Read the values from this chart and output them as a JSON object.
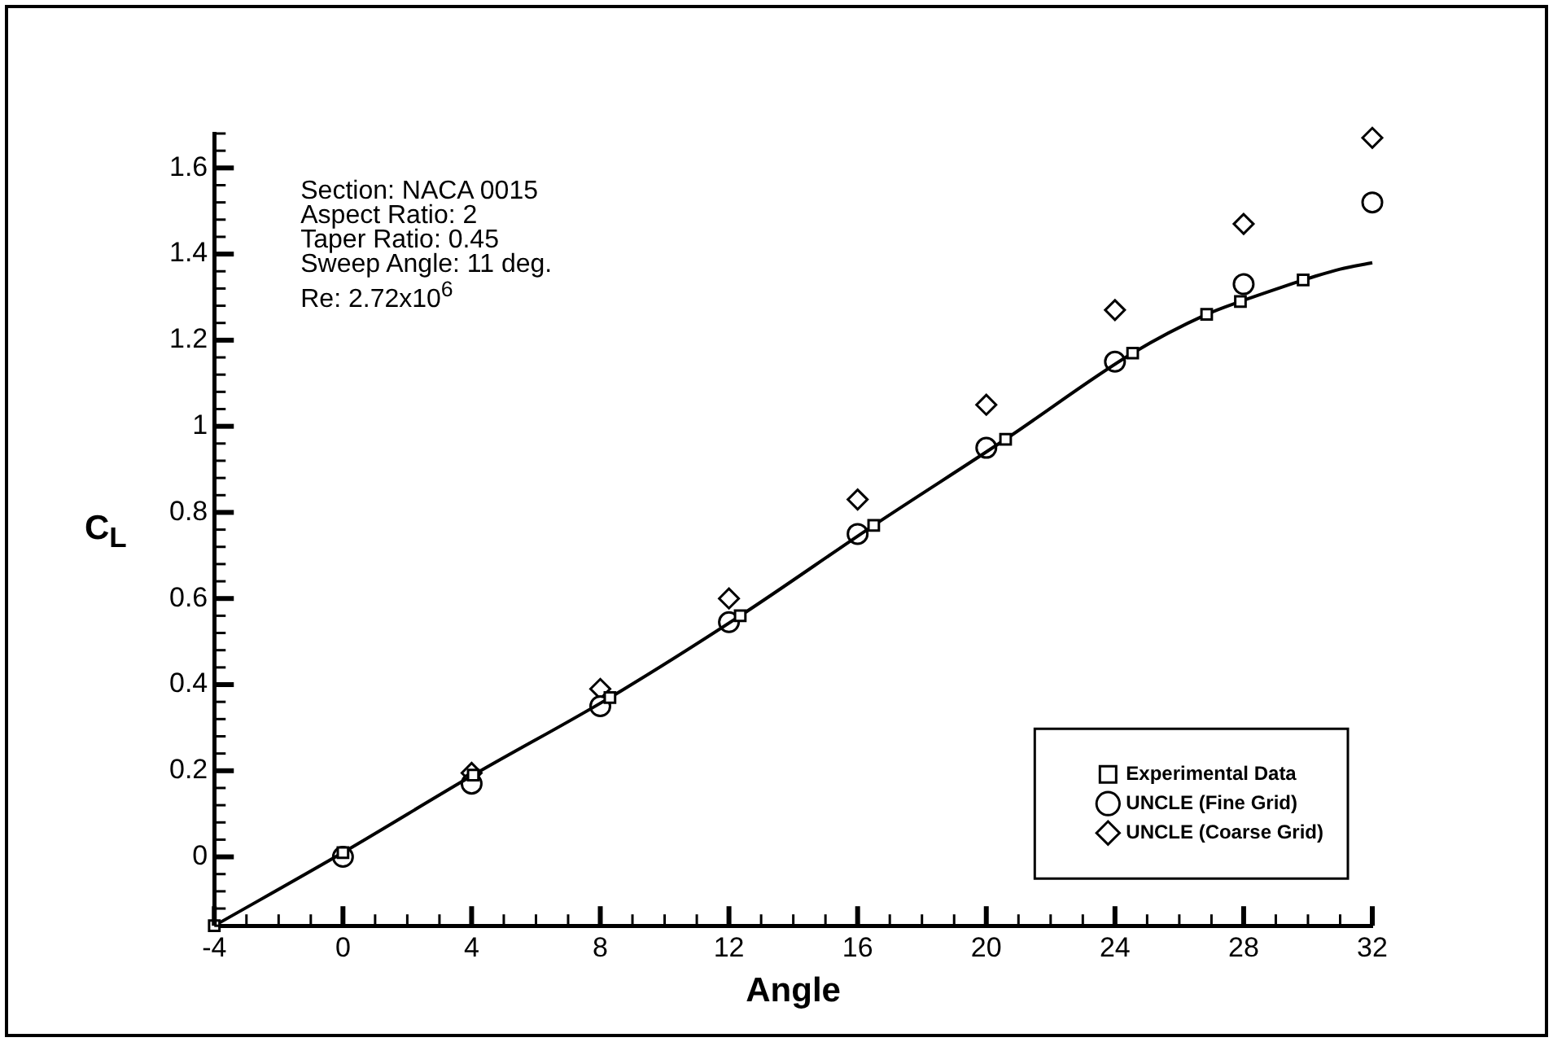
{
  "chart_data": {
    "type": "line",
    "xlabel": "Angle",
    "ylabel": "C$_{L}$",
    "legend": "bottom right",
    "annotations": [
      "Section: NACA 0015",
      "Aspect Ratio: 2",
      "Taper Ratio: 0.45",
      "Sweep Angle: 11 deg.",
      "Re: 2.72x10$^{6}$"
    ],
    "xlim": [
      -4,
      32
    ],
    "ylim": [
      -0.16,
      1.68
    ],
    "xticks": [
      -4,
      {
        "value": -3,
        "label": null
      },
      {
        "value": -2,
        "label": null
      },
      {
        "value": -1,
        "label": null
      },
      0,
      {
        "value": 1,
        "label": null
      },
      {
        "value": 2,
        "label": null
      },
      {
        "value": 3,
        "label": null
      },
      4,
      {
        "value": 5,
        "label": null
      },
      {
        "value": 6,
        "label": null
      },
      {
        "value": 7,
        "label": null
      },
      8,
      {
        "value": 9,
        "label": null
      },
      {
        "value": 10,
        "label": null
      },
      {
        "value": 11,
        "label": null
      },
      12,
      {
        "value": 13,
        "label": null
      },
      {
        "value": 14,
        "label": null
      },
      {
        "value": 15,
        "label": null
      },
      16,
      {
        "value": 17,
        "label": null
      },
      {
        "value": 18,
        "label": null
      },
      {
        "value": 19,
        "label": null
      },
      20,
      {
        "value": 21,
        "label": null
      },
      {
        "value": 22,
        "label": null
      },
      {
        "value": 23,
        "label": null
      },
      24,
      {
        "value": 25,
        "label": null
      },
      {
        "value": 26,
        "label": null
      },
      {
        "value": 27,
        "label": null
      },
      28,
      {
        "value": 29,
        "label": null
      },
      {
        "value": 30,
        "label": null
      },
      {
        "value": 31,
        "label": null
      },
      32
    ],
    "yticks": [
      {
        "value": -0.16,
        "label": null
      },
      {
        "value": -0.12,
        "label": null
      },
      {
        "value": -0.08,
        "label": null
      },
      {
        "value": -0.04,
        "label": null
      },
      0,
      {
        "value": 0.04,
        "label": null
      },
      {
        "value": 0.08,
        "label": null
      },
      {
        "value": 0.12,
        "label": null
      },
      {
        "value": 0.16,
        "label": null
      },
      0.2,
      {
        "value": 0.24,
        "label": null
      },
      {
        "value": 0.28,
        "label": null
      },
      {
        "value": 0.32,
        "label": null
      },
      {
        "value": 0.36,
        "label": null
      },
      0.4,
      {
        "value": 0.44,
        "label": null
      },
      {
        "value": 0.48,
        "label": null
      },
      {
        "value": 0.52,
        "label": null
      },
      {
        "value": 0.56,
        "label": null
      },
      0.6,
      {
        "value": 0.64,
        "label": null
      },
      {
        "value": 0.68,
        "label": null
      },
      {
        "value": 0.72,
        "label": null
      },
      {
        "value": 0.76,
        "label": null
      },
      0.8,
      {
        "value": 0.84,
        "label": null
      },
      {
        "value": 0.88,
        "label": null
      },
      {
        "value": 0.92,
        "label": null
      },
      {
        "value": 0.96,
        "label": null
      },
      1,
      {
        "value": 1.04,
        "label": null
      },
      {
        "value": 1.08,
        "label": null
      },
      {
        "value": 1.12,
        "label": null
      },
      {
        "value": 1.16,
        "label": null
      },
      1.2,
      {
        "value": 1.24,
        "label": null
      },
      {
        "value": 1.28,
        "label": null
      },
      {
        "value": 1.32,
        "label": null
      },
      {
        "value": 1.36,
        "label": null
      },
      1.4,
      {
        "value": 1.44,
        "label": null
      },
      {
        "value": 1.48,
        "label": null
      },
      {
        "value": 1.52,
        "label": null
      },
      {
        "value": 1.56,
        "label": null
      },
      1.6,
      {
        "value": 1.64,
        "label": null
      },
      {
        "value": 1.68,
        "label": null
      }
    ],
    "series": [
      {
        "name": "Experimental Data",
        "type": "line",
        "color": "#000000",
        "marker": "square",
        "x": [
          -4,
          0,
          4.05,
          8.3,
          12.35,
          16.5,
          20.6,
          24.55,
          26.85,
          27.9,
          29.85
        ],
        "values": [
          -0.16,
          0.01,
          0.19,
          0.37,
          0.56,
          0.77,
          0.97,
          1.17,
          1.26,
          1.29,
          1.34
        ]
      },
      {
        "type": "line",
        "color": "#000000",
        "marker": "none",
        "x": [
          29.85,
          31,
          32
        ],
        "values": [
          1.34,
          1.365,
          1.38
        ]
      },
      {
        "name": "UNCLE (Fine Grid)",
        "type": "scatter",
        "color": "#000000",
        "marker": "circle",
        "x": [
          0,
          4,
          8,
          12,
          16,
          20,
          24,
          28,
          32
        ],
        "values": [
          0,
          0.17,
          0.35,
          0.545,
          0.75,
          0.95,
          1.15,
          1.33,
          1.52
        ]
      },
      {
        "name": "UNCLE (Coarse Grid)",
        "type": "scatter",
        "color": "#000000",
        "marker": "diamond",
        "x": [
          4,
          8,
          12,
          16,
          20,
          24,
          28,
          32
        ],
        "values": [
          0.195,
          0.39,
          0.6,
          0.83,
          1.05,
          1.27,
          1.47,
          1.67
        ]
      }
    ]
  }
}
